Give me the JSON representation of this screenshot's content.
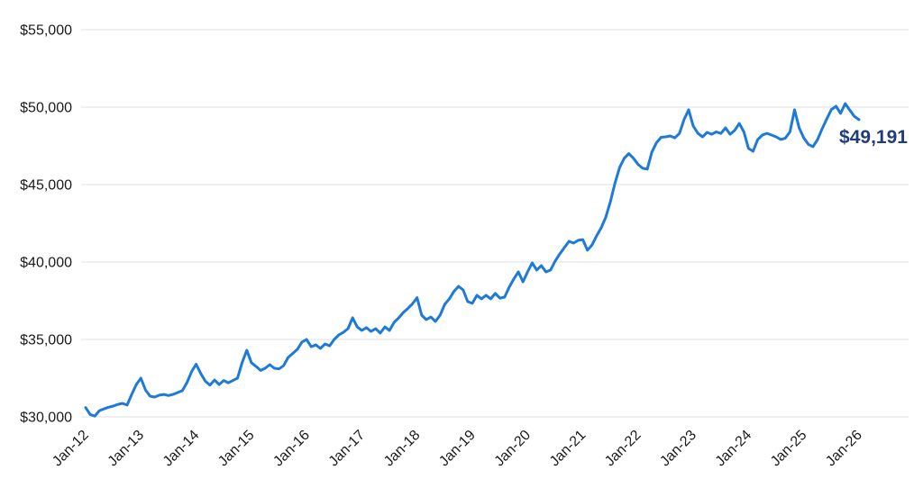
{
  "chart_data": {
    "type": "line",
    "title": "",
    "xlabel": "",
    "ylabel": "",
    "legend": "none",
    "grid": "horizontal-only",
    "ylim": [
      30000,
      55000
    ],
    "y_ticks": [
      30000,
      35000,
      40000,
      45000,
      50000,
      55000
    ],
    "y_tick_labels": [
      "$30,000",
      "$35,000",
      "$40,000",
      "$45,000",
      "$50,000",
      "$55,000"
    ],
    "x_tick_labels": [
      "Jan-12",
      "Jan-13",
      "Jan-14",
      "Jan-15",
      "Jan-16",
      "Jan-17",
      "Jan-18",
      "Jan-19",
      "Jan-20",
      "Jan-21",
      "Jan-22",
      "Jan-23",
      "Jan-24",
      "Jan-25",
      "Jan-26"
    ],
    "points_per_x_tick": 12,
    "x_frequency": "monthly",
    "end_label": "$49,191",
    "end_value": 49191,
    "values": [
      30600,
      30150,
      30050,
      30400,
      30520,
      30620,
      30700,
      30810,
      30870,
      30760,
      31450,
      32090,
      32500,
      31740,
      31340,
      31280,
      31400,
      31450,
      31380,
      31450,
      31570,
      31690,
      32210,
      32910,
      33400,
      32800,
      32300,
      32050,
      32380,
      32090,
      32350,
      32200,
      32350,
      32500,
      33500,
      34300,
      33500,
      33260,
      33000,
      33140,
      33370,
      33140,
      33100,
      33300,
      33840,
      34100,
      34360,
      34830,
      35000,
      34530,
      34650,
      34420,
      34710,
      34590,
      35000,
      35290,
      35460,
      35700,
      36400,
      35810,
      35580,
      35760,
      35520,
      35700,
      35410,
      35810,
      35580,
      36100,
      36390,
      36740,
      37000,
      37300,
      37700,
      36570,
      36280,
      36450,
      36160,
      36570,
      37270,
      37620,
      38100,
      38430,
      38200,
      37440,
      37330,
      37850,
      37620,
      37850,
      37620,
      37970,
      37670,
      37730,
      38370,
      38900,
      39360,
      38720,
      39360,
      39940,
      39480,
      39770,
      39360,
      39480,
      40060,
      40520,
      40930,
      41340,
      41220,
      41400,
      41450,
      40760,
      41100,
      41690,
      42210,
      42900,
      43900,
      45100,
      46100,
      46700,
      47000,
      46700,
      46300,
      46050,
      46000,
      47100,
      47700,
      48050,
      48080,
      48140,
      48020,
      48300,
      49200,
      49830,
      48780,
      48310,
      48080,
      48370,
      48250,
      48400,
      48300,
      48660,
      48250,
      48500,
      48950,
      48400,
      47330,
      47150,
      47900,
      48200,
      48310,
      48200,
      48080,
      47910,
      48000,
      48400,
      49830,
      48660,
      48020,
      47600,
      47450,
      47900,
      48600,
      49250,
      49850,
      50060,
      49600,
      50230,
      49800,
      49400,
      49191
    ],
    "colors": {
      "line": "#1E7AD9",
      "end_label": "#1F3D7A",
      "axis_text": "#1A1A1A",
      "gridline": "#E7E7E7",
      "background": "#FFFFFF"
    }
  }
}
